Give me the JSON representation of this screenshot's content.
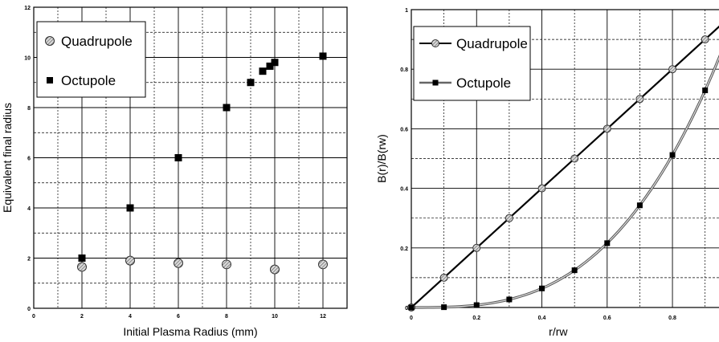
{
  "chart_data": [
    {
      "type": "scatter",
      "title": "",
      "xlabel": "Initial Plasma Radius  (mm)",
      "ylabel": "Equivalent final radius",
      "xlim": [
        0,
        13
      ],
      "ylim": [
        0,
        12
      ],
      "xticks": [
        "0",
        "2",
        "4",
        "6",
        "8",
        "10",
        "12"
      ],
      "yticks": [
        "0",
        "2",
        "4",
        "6",
        "8",
        "10",
        "12"
      ],
      "grid": true,
      "legend": "top-left",
      "series": [
        {
          "name": "Quadrupole",
          "marker": "hatched-circle",
          "x": [
            2,
            4,
            6,
            8,
            10,
            12
          ],
          "y": [
            1.65,
            1.9,
            1.8,
            1.75,
            1.55,
            1.75
          ]
        },
        {
          "name": "Octupole",
          "marker": "square",
          "x": [
            2,
            4,
            6,
            8,
            9,
            9.5,
            9.8,
            10,
            12
          ],
          "y": [
            2,
            4,
            6,
            8,
            9,
            9.45,
            9.65,
            9.8,
            10.05
          ]
        }
      ]
    },
    {
      "type": "line",
      "title": "",
      "xlabel": "r/rw",
      "ylabel": "B(r)/B(rw)",
      "xlim": [
        0,
        0.95
      ],
      "ylim": [
        0,
        1
      ],
      "xticks": [
        "0",
        "0.2",
        "0.4",
        "0.6",
        "0.8"
      ],
      "yticks": [
        "0",
        "0.2",
        "0.4",
        "0.6",
        "0.8",
        "1"
      ],
      "grid": true,
      "legend": "top-left",
      "series": [
        {
          "name": "Quadrupole",
          "marker": "hatched-circle",
          "x": [
            0,
            0.1,
            0.2,
            0.3,
            0.4,
            0.5,
            0.6,
            0.7,
            0.8,
            0.9,
            1.0
          ],
          "y": [
            0,
            0.1,
            0.2,
            0.3,
            0.4,
            0.5,
            0.6,
            0.7,
            0.8,
            0.9,
            1.0
          ]
        },
        {
          "name": "Octupole",
          "marker": "square",
          "x": [
            0,
            0.1,
            0.2,
            0.3,
            0.4,
            0.5,
            0.6,
            0.7,
            0.8,
            0.9,
            1.0
          ],
          "y": [
            0,
            0.001,
            0.008,
            0.027,
            0.064,
            0.125,
            0.216,
            0.343,
            0.512,
            0.729,
            1.0
          ]
        }
      ]
    }
  ]
}
